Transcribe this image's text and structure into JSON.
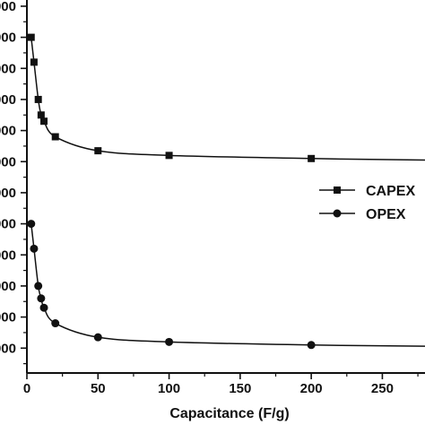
{
  "chart_data": {
    "type": "line",
    "title": "",
    "xlabel": "Capacitance (F/g)",
    "ylabel": "",
    "xlim": [
      0,
      280
    ],
    "x_ticks": [
      0,
      50,
      100,
      150,
      200,
      250
    ],
    "y_tick_labels": [
      "000",
      "000",
      "000",
      "000",
      "000",
      "000",
      "000",
      "000",
      "000",
      "000",
      "000",
      "000"
    ],
    "grid": false,
    "legend_position": "right",
    "series": [
      {
        "name": "CAPEX",
        "marker": "square",
        "x": [
          3,
          5,
          8,
          10,
          12,
          20,
          50,
          100,
          200,
          280
        ],
        "y": [
          11.0,
          10.2,
          9.0,
          8.5,
          8.3,
          7.8,
          7.35,
          7.2,
          7.1,
          7.05
        ]
      },
      {
        "name": "OPEX",
        "marker": "circle",
        "x": [
          3,
          5,
          8,
          10,
          12,
          20,
          50,
          100,
          200,
          280
        ],
        "y": [
          5.0,
          4.2,
          3.0,
          2.6,
          2.3,
          1.8,
          1.35,
          1.2,
          1.1,
          1.06
        ]
      }
    ],
    "colors": {
      "line": "#111111",
      "axis": "#111111"
    }
  }
}
